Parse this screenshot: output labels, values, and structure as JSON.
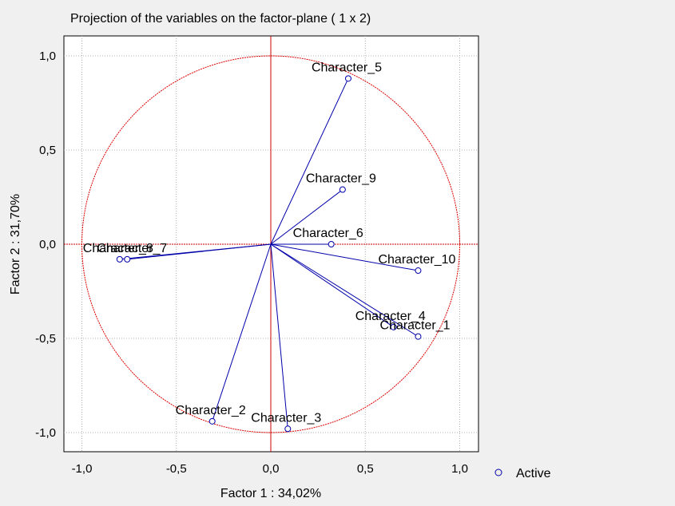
{
  "chart_data": {
    "type": "scatter",
    "title": "Projection of the variables on the factor-plane (  1 x   2)",
    "xlabel": "Factor 1 : 34,02%",
    "ylabel": "Factor 2 : 31,70%",
    "xlim": [
      -1.1,
      1.1
    ],
    "ylim": [
      -1.1,
      1.1
    ],
    "xticks": [
      "-1,0",
      "-0,5",
      "0,0",
      "0,5",
      "1,0"
    ],
    "yticks": [
      "1,0",
      "0,5",
      "0,0",
      "-0,5",
      "-1,0"
    ],
    "grid": true,
    "unit_circle": true,
    "legend_position": "right",
    "series": [
      {
        "name": "Active",
        "color": "#0000aa",
        "points": [
          {
            "label": "Character_1",
            "x": 0.78,
            "y": -0.49
          },
          {
            "label": "Character_2",
            "x": -0.31,
            "y": -0.94
          },
          {
            "label": "Character_3",
            "x": 0.09,
            "y": -0.98
          },
          {
            "label": "Character_4",
            "x": 0.65,
            "y": -0.44
          },
          {
            "label": "Character_5",
            "x": 0.41,
            "y": 0.88
          },
          {
            "label": "Character_6",
            "x": 0.32,
            "y": 0.0
          },
          {
            "label": "Character_7",
            "x": -0.76,
            "y": -0.08
          },
          {
            "label": "Character_8",
            "x": -0.8,
            "y": -0.08
          },
          {
            "label": "Character_9",
            "x": 0.38,
            "y": 0.29
          },
          {
            "label": "Character_10",
            "x": 0.78,
            "y": -0.14
          }
        ]
      }
    ]
  },
  "colors": {
    "vector": "#0000aa",
    "circle": "#dd0000",
    "origin_lines": "#cc0000",
    "grid": "#b0b0b0"
  }
}
